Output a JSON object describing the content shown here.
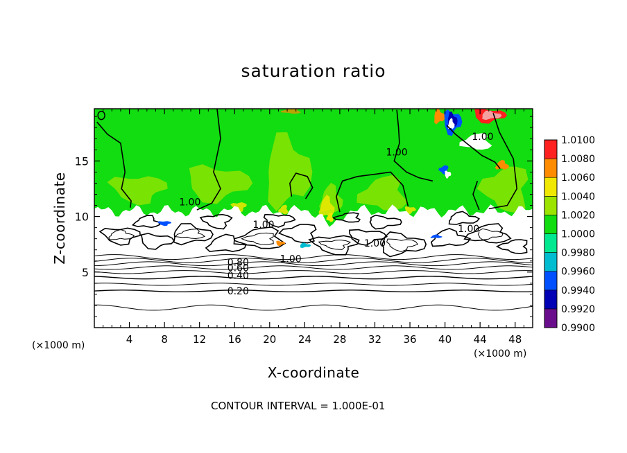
{
  "chart_data": {
    "type": "heatmap",
    "title": "saturation ratio",
    "xlabel": "X-coordinate",
    "ylabel": "Z-coordinate",
    "x_unit_left": "(×1000 m)",
    "x_unit_right": "(×1000 m)",
    "xlim": [
      0,
      50
    ],
    "ylim": [
      0,
      19.7
    ],
    "x_ticks": [
      4,
      8,
      12,
      16,
      20,
      24,
      28,
      32,
      36,
      40,
      44,
      48
    ],
    "y_ticks": [
      5,
      10,
      15
    ],
    "colorbar": {
      "levels": [
        0.99,
        0.992,
        0.994,
        0.996,
        0.998,
        1.0,
        1.002,
        1.004,
        1.006,
        1.008,
        1.01
      ],
      "labels": [
        "0.9900",
        "0.9920",
        "0.9940",
        "0.9960",
        "0.9980",
        "1.0000",
        "1.0020",
        "1.0040",
        "1.0060",
        "1.0080",
        "1.0100"
      ],
      "colors": [
        "#6a0d8c",
        "#0000b4",
        "#0050ff",
        "#00bcd0",
        "#00e890",
        "#11dd11",
        "#9ce400",
        "#f0e800",
        "#ff8c00",
        "#ff2020",
        "#f4a0a0"
      ]
    },
    "saturated_layer_base_z": 10.5,
    "contour_interval_text": "CONTOUR INTERVAL = 1.000E-01",
    "contour_labels": [
      {
        "text": "1.00",
        "x": 10.9,
        "z": 11.3
      },
      {
        "text": "1.00",
        "x": 19.3,
        "z": 9.3
      },
      {
        "text": "1.00",
        "x": 34.5,
        "z": 15.8
      },
      {
        "text": "1.00",
        "x": 44.3,
        "z": 17.2
      },
      {
        "text": "1.00",
        "x": 42.7,
        "z": 8.9
      },
      {
        "text": "1.00",
        "x": 32.0,
        "z": 7.6
      },
      {
        "text": "1.00",
        "x": 22.4,
        "z": 6.2
      },
      {
        "text": "0.80",
        "x": 16.4,
        "z": 5.9
      },
      {
        "text": "0.60",
        "x": 16.4,
        "z": 5.4
      },
      {
        "text": "0.40",
        "x": 16.4,
        "z": 4.7
      },
      {
        "text": "0.20",
        "x": 16.4,
        "z": 3.3
      }
    ],
    "low_contour_levels": [
      {
        "level": 0.2,
        "z": 3.3
      },
      {
        "level": 0.3,
        "z": 3.9
      },
      {
        "level": 0.4,
        "z": 4.5
      },
      {
        "level": 0.5,
        "z": 5.0
      },
      {
        "level": 0.6,
        "z": 5.4
      },
      {
        "level": 0.7,
        "z": 5.75
      },
      {
        "level": 0.8,
        "z": 6.05
      },
      {
        "level": 0.9,
        "z": 6.35
      },
      {
        "level": 0.1,
        "z": 1.8
      }
    ]
  }
}
